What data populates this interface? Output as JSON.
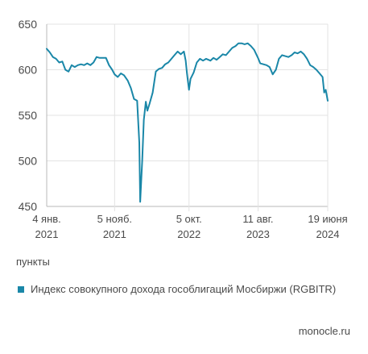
{
  "chart_data": {
    "type": "line",
    "title": "",
    "xlabel": "",
    "ylabel": "",
    "units_label": "пункты",
    "ylim": [
      450,
      650
    ],
    "yticks": [
      450,
      500,
      550,
      600,
      650
    ],
    "grid": "horizontal",
    "xlim": [
      "2021-01-04",
      "2024-06-19"
    ],
    "xticks": [
      {
        "date": "2021-01-04",
        "line1": "4 янв.",
        "line2": "2021"
      },
      {
        "date": "2021-11-05",
        "line1": "5 нояб.",
        "line2": "2021"
      },
      {
        "date": "2022-10-05",
        "line1": "5 окт.",
        "line2": "2022"
      },
      {
        "date": "2023-08-11",
        "line1": "11 авг.",
        "line2": "2023"
      },
      {
        "date": "2024-06-19",
        "line1": "19 июня",
        "line2": "2024"
      }
    ],
    "series": [
      {
        "name": "Индекс совокупного дохода гособлигаций Мосбиржи (RGBITR)",
        "color": "#1a87a8",
        "points": [
          [
            "2021-01-04",
            623
          ],
          [
            "2021-01-18",
            619
          ],
          [
            "2021-02-01",
            614
          ],
          [
            "2021-02-15",
            612
          ],
          [
            "2021-03-01",
            608
          ],
          [
            "2021-03-15",
            609
          ],
          [
            "2021-03-29",
            600
          ],
          [
            "2021-04-12",
            598
          ],
          [
            "2021-04-26",
            605
          ],
          [
            "2021-05-10",
            603
          ],
          [
            "2021-05-24",
            605
          ],
          [
            "2021-06-07",
            606
          ],
          [
            "2021-06-21",
            605
          ],
          [
            "2021-07-05",
            607
          ],
          [
            "2021-07-19",
            605
          ],
          [
            "2021-08-02",
            608
          ],
          [
            "2021-08-16",
            614
          ],
          [
            "2021-08-30",
            613
          ],
          [
            "2021-09-13",
            613
          ],
          [
            "2021-09-27",
            613
          ],
          [
            "2021-10-11",
            605
          ],
          [
            "2021-10-25",
            600
          ],
          [
            "2021-11-05",
            595
          ],
          [
            "2021-11-19",
            592
          ],
          [
            "2021-12-03",
            596
          ],
          [
            "2021-12-17",
            594
          ],
          [
            "2022-01-03",
            588
          ],
          [
            "2022-01-17",
            580
          ],
          [
            "2022-01-31",
            568
          ],
          [
            "2022-02-14",
            566
          ],
          [
            "2022-02-24",
            520
          ],
          [
            "2022-02-28",
            455
          ],
          [
            "2022-03-09",
            500
          ],
          [
            "2022-03-16",
            545
          ],
          [
            "2022-03-25",
            565
          ],
          [
            "2022-04-01",
            555
          ],
          [
            "2022-04-11",
            563
          ],
          [
            "2022-04-25",
            575
          ],
          [
            "2022-05-09",
            598
          ],
          [
            "2022-05-23",
            601
          ],
          [
            "2022-06-06",
            602
          ],
          [
            "2022-06-20",
            606
          ],
          [
            "2022-07-04",
            608
          ],
          [
            "2022-07-18",
            612
          ],
          [
            "2022-08-01",
            616
          ],
          [
            "2022-08-15",
            620
          ],
          [
            "2022-08-29",
            617
          ],
          [
            "2022-09-12",
            620
          ],
          [
            "2022-09-20",
            610
          ],
          [
            "2022-09-26",
            596
          ],
          [
            "2022-10-05",
            578
          ],
          [
            "2022-10-12",
            590
          ],
          [
            "2022-10-26",
            597
          ],
          [
            "2022-11-09",
            608
          ],
          [
            "2022-11-23",
            612
          ],
          [
            "2022-12-07",
            610
          ],
          [
            "2022-12-21",
            612
          ],
          [
            "2023-01-09",
            610
          ],
          [
            "2023-01-23",
            613
          ],
          [
            "2023-02-06",
            611
          ],
          [
            "2023-02-20",
            614
          ],
          [
            "2023-03-06",
            617
          ],
          [
            "2023-03-20",
            616
          ],
          [
            "2023-04-03",
            620
          ],
          [
            "2023-04-17",
            624
          ],
          [
            "2023-05-02",
            626
          ],
          [
            "2023-05-15",
            629
          ],
          [
            "2023-05-29",
            629
          ],
          [
            "2023-06-12",
            628
          ],
          [
            "2023-06-26",
            629
          ],
          [
            "2023-07-10",
            626
          ],
          [
            "2023-07-24",
            622
          ],
          [
            "2023-08-11",
            613
          ],
          [
            "2023-08-21",
            607
          ],
          [
            "2023-09-04",
            606
          ],
          [
            "2023-09-18",
            605
          ],
          [
            "2023-10-02",
            603
          ],
          [
            "2023-10-16",
            595
          ],
          [
            "2023-10-30",
            600
          ],
          [
            "2023-11-13",
            612
          ],
          [
            "2023-11-27",
            616
          ],
          [
            "2023-12-11",
            615
          ],
          [
            "2023-12-25",
            614
          ],
          [
            "2024-01-09",
            616
          ],
          [
            "2024-01-22",
            619
          ],
          [
            "2024-02-05",
            618
          ],
          [
            "2024-02-19",
            620
          ],
          [
            "2024-03-04",
            617
          ],
          [
            "2024-03-18",
            612
          ],
          [
            "2024-04-01",
            605
          ],
          [
            "2024-04-15",
            603
          ],
          [
            "2024-04-29",
            600
          ],
          [
            "2024-05-13",
            596
          ],
          [
            "2024-05-27",
            592
          ],
          [
            "2024-06-03",
            575
          ],
          [
            "2024-06-10",
            578
          ],
          [
            "2024-06-19",
            566
          ]
        ]
      }
    ]
  },
  "legend": {
    "label": "Индекс совокупного дохода гособлигаций Мосбиржи (RGBITR)",
    "color": "#1a87a8"
  },
  "source": "monocle.ru"
}
